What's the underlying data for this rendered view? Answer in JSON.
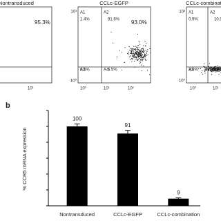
{
  "panels": [
    {
      "title": "Nontransduced",
      "gate_percent": "95.3%",
      "xticks": [
        "10¹"
      ],
      "yticks": [],
      "quadrants": []
    },
    {
      "title": "CCLc-EGFP",
      "gate_percent": "93.0%",
      "xticks": [
        "10⁰",
        "10¹",
        "10²"
      ],
      "yticks": [
        "10³",
        "10⁰"
      ],
      "quadrants": [
        {
          "name": "A1",
          "percent": "1.4%"
        },
        {
          "name": "A2",
          "percent": "91.6%"
        },
        {
          "name": "A3",
          "percent": "0.5%"
        },
        {
          "name": "A4",
          "percent": "6.5%"
        }
      ]
    },
    {
      "title": "CCLc-combination",
      "gate_percent": null,
      "xticks": [
        "10⁰",
        "10¹"
      ],
      "yticks": [
        "10³",
        "10⁰"
      ],
      "quadrants": [
        {
          "name": "A1",
          "percent": "0.9%"
        },
        {
          "name": "A2",
          "percent": "10.9%"
        },
        {
          "name": "A3",
          "percent": "3.5%"
        },
        {
          "name": "A4",
          "percent": "84.6%"
        }
      ]
    }
  ],
  "chart_data": {
    "type": "bar",
    "panel_label": "b",
    "y_label": "% CCR5 mRNA expression",
    "categories": [
      "Nontransduced",
      "CCLc-EGFP",
      "CCLc-combination"
    ],
    "values": [
      100,
      91,
      9
    ],
    "errors": [
      3,
      4,
      1
    ],
    "color": "#000000",
    "ylim": [
      0,
      120
    ],
    "yticks": [
      0,
      20,
      40,
      60,
      80,
      100,
      120
    ]
  }
}
